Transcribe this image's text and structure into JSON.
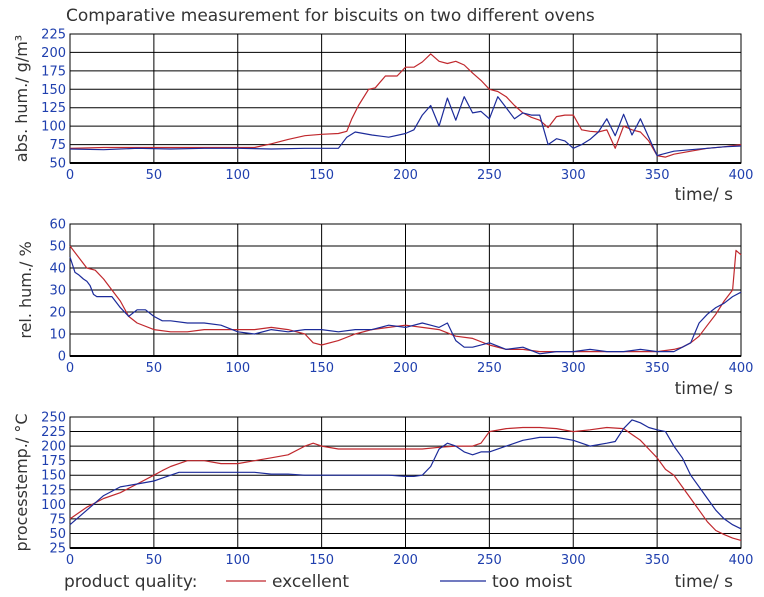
{
  "title": "Comparative measurement for biscuits on two different ovens",
  "legend": {
    "label": "product quality:",
    "items": [
      {
        "name": "excellent",
        "color": "#c0282d"
      },
      {
        "name": "too moist",
        "color": "#1c2b9a"
      }
    ]
  },
  "chart_data": [
    {
      "type": "line",
      "ylabel": "abs. hum./ g/m³",
      "xlabel": "time/ s",
      "xlim": [
        0,
        400
      ],
      "ylim": [
        50,
        225
      ],
      "xticks": [
        0,
        50,
        100,
        150,
        200,
        250,
        300,
        350,
        400
      ],
      "yticks": [
        50,
        75,
        100,
        125,
        150,
        175,
        200,
        225
      ],
      "grid": true,
      "series": [
        {
          "name": "excellent",
          "color": "#c0282d",
          "x": [
            0,
            20,
            40,
            60,
            80,
            100,
            110,
            120,
            130,
            140,
            150,
            160,
            165,
            168,
            172,
            178,
            182,
            188,
            195,
            200,
            205,
            210,
            215,
            220,
            225,
            230,
            235,
            240,
            245,
            250,
            255,
            260,
            265,
            270,
            275,
            280,
            285,
            290,
            295,
            300,
            305,
            310,
            315,
            320,
            325,
            330,
            335,
            340,
            345,
            350,
            355,
            360,
            370,
            380,
            390,
            400
          ],
          "y": [
            70,
            71,
            71,
            71,
            71,
            71,
            71,
            76,
            82,
            87,
            89,
            90,
            93,
            110,
            128,
            150,
            152,
            168,
            168,
            180,
            180,
            187,
            198,
            188,
            185,
            188,
            183,
            172,
            162,
            150,
            147,
            140,
            128,
            118,
            112,
            108,
            98,
            113,
            115,
            115,
            95,
            93,
            92,
            95,
            70,
            100,
            95,
            92,
            80,
            60,
            58,
            62,
            66,
            70,
            72,
            75
          ]
        },
        {
          "name": "too moist",
          "color": "#1c2b9a",
          "x": [
            0,
            20,
            40,
            60,
            80,
            100,
            120,
            140,
            155,
            160,
            165,
            170,
            180,
            190,
            200,
            205,
            210,
            215,
            220,
            225,
            230,
            235,
            240,
            245,
            250,
            255,
            260,
            265,
            270,
            275,
            280,
            285,
            290,
            295,
            300,
            305,
            310,
            315,
            320,
            325,
            330,
            335,
            340,
            345,
            350,
            360,
            370,
            380,
            390,
            400
          ],
          "y": [
            69,
            68,
            70,
            69,
            70,
            70,
            69,
            70,
            70,
            70,
            85,
            92,
            88,
            85,
            90,
            95,
            115,
            128,
            100,
            138,
            108,
            140,
            118,
            120,
            110,
            140,
            125,
            110,
            118,
            115,
            115,
            75,
            83,
            80,
            70,
            75,
            82,
            92,
            110,
            87,
            116,
            88,
            110,
            85,
            60,
            66,
            68,
            70,
            72,
            73
          ]
        }
      ]
    },
    {
      "type": "line",
      "ylabel": "rel. hum./ %",
      "xlabel": "time/ s",
      "xlim": [
        0,
        400
      ],
      "ylim": [
        0,
        60
      ],
      "xticks": [
        0,
        50,
        100,
        150,
        200,
        250,
        300,
        350,
        400
      ],
      "yticks": [
        0,
        10,
        20,
        30,
        40,
        50,
        60
      ],
      "grid": true,
      "series": [
        {
          "name": "excellent",
          "color": "#c0282d",
          "x": [
            0,
            5,
            10,
            15,
            20,
            25,
            30,
            35,
            40,
            50,
            60,
            70,
            80,
            90,
            100,
            110,
            120,
            130,
            140,
            145,
            150,
            160,
            170,
            180,
            190,
            200,
            210,
            220,
            230,
            240,
            250,
            260,
            270,
            280,
            290,
            300,
            310,
            320,
            330,
            340,
            350,
            360,
            365,
            370,
            375,
            380,
            385,
            390,
            395,
            397,
            400
          ],
          "y": [
            50,
            45,
            40,
            39,
            35,
            30,
            25,
            18,
            15,
            12,
            11,
            11,
            12,
            12,
            12,
            12,
            13,
            12,
            10,
            6,
            5,
            7,
            10,
            12,
            13,
            14,
            13,
            12,
            9,
            8,
            5,
            3,
            3,
            2,
            2,
            2,
            2,
            2,
            2,
            2,
            2,
            3,
            4,
            6,
            9,
            14,
            19,
            25,
            30,
            48,
            46
          ]
        },
        {
          "name": "too moist",
          "color": "#1c2b9a",
          "x": [
            0,
            3,
            5,
            8,
            10,
            12,
            14,
            16,
            20,
            25,
            30,
            35,
            40,
            45,
            50,
            55,
            60,
            70,
            80,
            90,
            100,
            110,
            120,
            130,
            140,
            150,
            160,
            170,
            180,
            190,
            200,
            210,
            215,
            220,
            225,
            230,
            235,
            240,
            250,
            260,
            270,
            280,
            290,
            300,
            310,
            320,
            330,
            340,
            350,
            360,
            370,
            375,
            380,
            385,
            390,
            395,
            400
          ],
          "y": [
            45,
            38,
            37,
            35,
            34,
            32,
            28,
            27,
            27,
            27,
            22,
            18,
            21,
            21,
            18,
            16,
            16,
            15,
            15,
            14,
            11,
            10,
            12,
            11,
            12,
            12,
            11,
            12,
            12,
            14,
            13,
            15,
            14,
            13,
            15,
            7,
            4,
            4,
            6,
            3,
            4,
            1,
            2,
            2,
            3,
            2,
            2,
            3,
            2,
            2,
            6,
            15,
            19,
            22,
            24,
            27,
            29
          ]
        }
      ]
    },
    {
      "type": "line",
      "ylabel": "processtemp./ °C",
      "xlabel": "time/ s",
      "xlim": [
        0,
        400
      ],
      "ylim": [
        25,
        250
      ],
      "xticks": [
        0,
        50,
        100,
        150,
        200,
        250,
        300,
        350,
        400
      ],
      "yticks": [
        25,
        50,
        75,
        100,
        125,
        150,
        175,
        200,
        225,
        250
      ],
      "grid": true,
      "series": [
        {
          "name": "excellent",
          "color": "#c0282d",
          "x": [
            0,
            10,
            20,
            30,
            40,
            50,
            55,
            60,
            65,
            70,
            80,
            90,
            100,
            110,
            120,
            130,
            140,
            145,
            150,
            160,
            170,
            180,
            190,
            200,
            210,
            220,
            230,
            240,
            245,
            250,
            260,
            270,
            280,
            290,
            300,
            310,
            320,
            330,
            335,
            340,
            345,
            350,
            355,
            360,
            365,
            370,
            375,
            380,
            385,
            390,
            395,
            400
          ],
          "y": [
            75,
            95,
            110,
            120,
            135,
            150,
            158,
            165,
            170,
            175,
            175,
            170,
            170,
            175,
            180,
            185,
            200,
            205,
            200,
            195,
            195,
            195,
            195,
            195,
            195,
            198,
            200,
            200,
            205,
            225,
            230,
            232,
            232,
            230,
            225,
            228,
            232,
            230,
            220,
            210,
            195,
            180,
            160,
            150,
            130,
            110,
            90,
            70,
            55,
            48,
            42,
            38
          ]
        },
        {
          "name": "too moist",
          "color": "#1c2b9a",
          "x": [
            0,
            10,
            20,
            30,
            40,
            50,
            55,
            60,
            65,
            70,
            80,
            90,
            100,
            110,
            120,
            130,
            140,
            150,
            160,
            170,
            180,
            190,
            200,
            205,
            210,
            215,
            220,
            225,
            230,
            235,
            240,
            245,
            250,
            260,
            270,
            280,
            290,
            300,
            310,
            320,
            325,
            330,
            335,
            340,
            345,
            350,
            355,
            360,
            365,
            370,
            375,
            380,
            385,
            390,
            395,
            400
          ],
          "y": [
            65,
            90,
            115,
            130,
            135,
            140,
            145,
            150,
            155,
            155,
            155,
            155,
            155,
            155,
            152,
            152,
            150,
            150,
            150,
            150,
            150,
            150,
            148,
            148,
            150,
            165,
            195,
            205,
            200,
            190,
            185,
            190,
            190,
            200,
            210,
            215,
            215,
            210,
            200,
            205,
            208,
            230,
            245,
            240,
            232,
            228,
            225,
            200,
            180,
            150,
            130,
            110,
            90,
            75,
            65,
            58
          ]
        }
      ]
    }
  ]
}
